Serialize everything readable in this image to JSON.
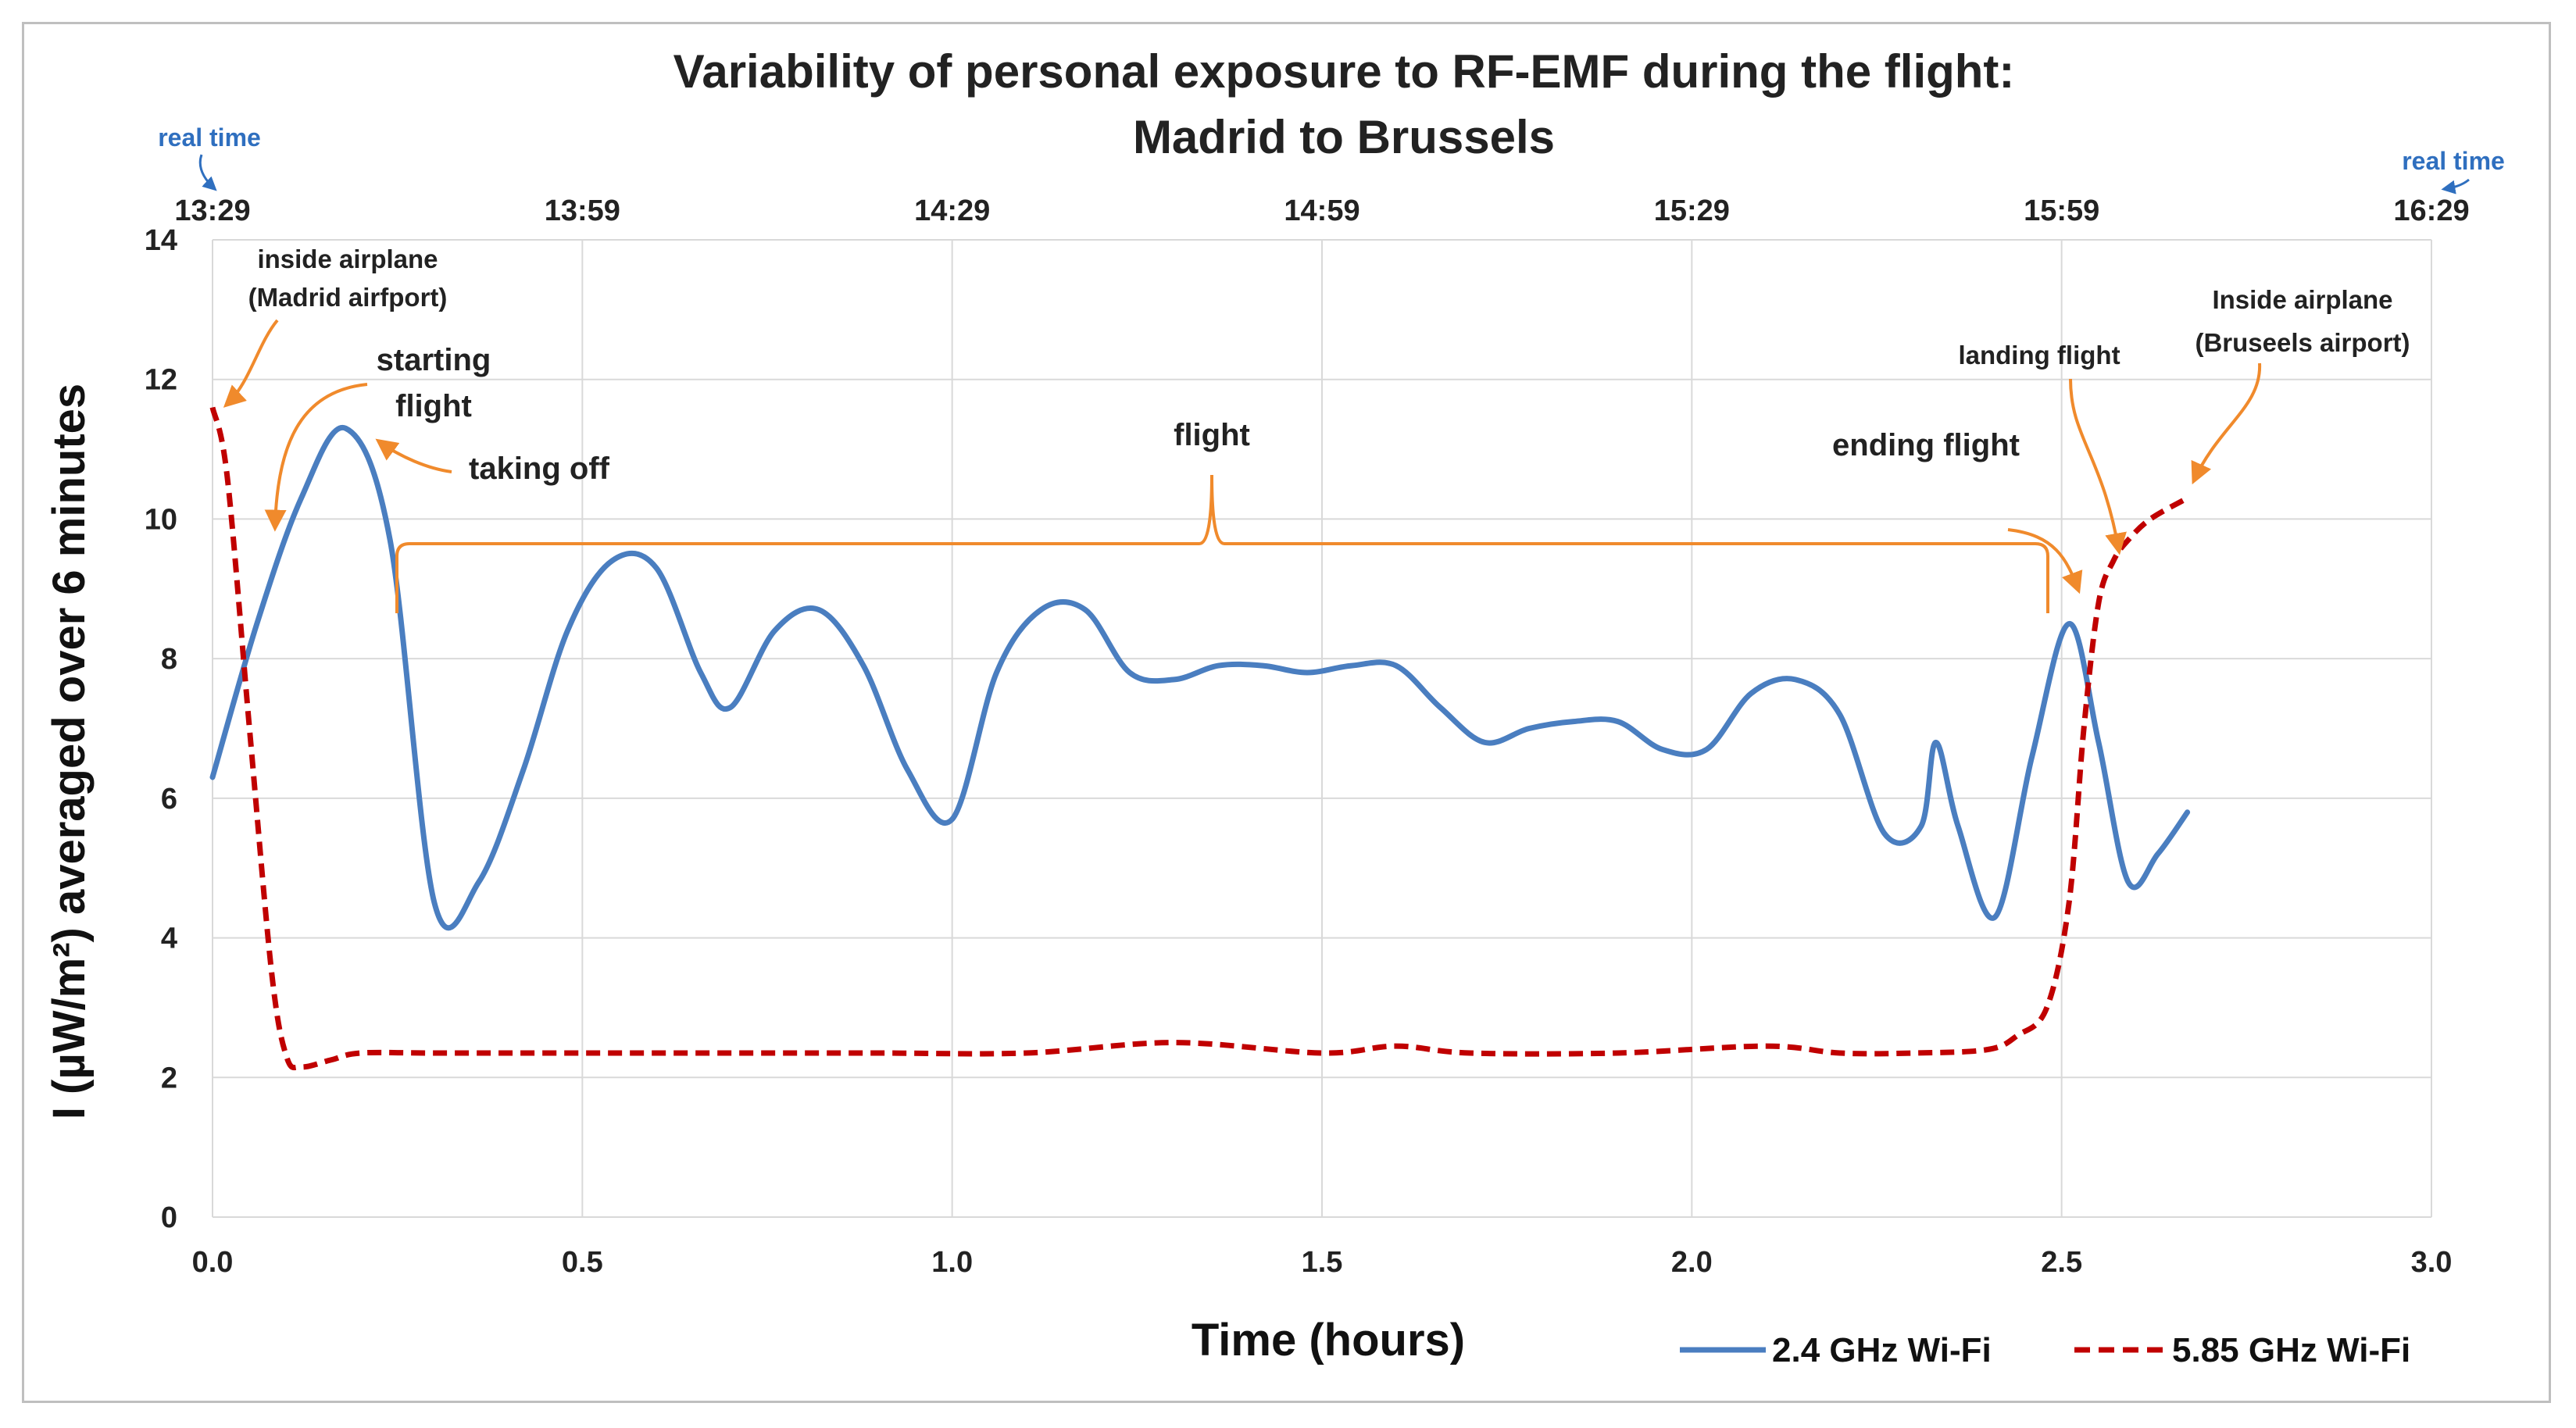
{
  "colors": {
    "series_24": "#4a7ec0",
    "series_585": "#c00000",
    "annotation": "#f08a2c",
    "realtime": "#2f6fbf",
    "grid": "#d9d9d9"
  },
  "chart_data": {
    "type": "line",
    "title": [
      "Variability of personal exposure to RF-EMF during the flight:",
      "Madrid to Brussels"
    ],
    "xlabel": "Time (hours)",
    "ylabel": "I (µW/m²) averaged over 6 minutes",
    "xlim": [
      0,
      3
    ],
    "ylim": [
      0,
      14
    ],
    "x_ticks": [
      0,
      0.5,
      1,
      1.5,
      2,
      2.5,
      3
    ],
    "x_tick_labels": [
      "0.0",
      "0.5",
      "1.0",
      "1.5",
      "2.0",
      "2.5",
      "3.0"
    ],
    "y_ticks": [
      0,
      2,
      4,
      6,
      8,
      10,
      12,
      14
    ],
    "y_tick_labels": [
      "0",
      "2",
      "4",
      "6",
      "8",
      "10",
      "12",
      "14"
    ],
    "top_ticks": [
      0,
      0.5,
      1,
      1.5,
      2,
      2.5,
      3
    ],
    "top_tick_labels": [
      "13:29",
      "13:59",
      "14:29",
      "14:59",
      "15:29",
      "15:59",
      "16:29"
    ],
    "grid": true,
    "legend_position": "bottom-right",
    "series": [
      {
        "name": "2.4 GHz Wi-Fi",
        "style": "solid",
        "x": [
          0,
          0.06,
          0.12,
          0.18,
          0.24,
          0.3,
          0.36,
          0.42,
          0.48,
          0.54,
          0.6,
          0.66,
          0.7,
          0.76,
          0.82,
          0.88,
          0.94,
          1.0,
          1.06,
          1.12,
          1.18,
          1.24,
          1.3,
          1.36,
          1.42,
          1.48,
          1.54,
          1.6,
          1.66,
          1.72,
          1.78,
          1.84,
          1.9,
          1.96,
          2.02,
          2.08,
          2.14,
          2.2,
          2.26,
          2.31,
          2.33,
          2.36,
          2.41,
          2.46,
          2.51,
          2.55,
          2.59,
          2.63,
          2.67
        ],
        "y": [
          6.3,
          8.5,
          10.3,
          11.3,
          9.7,
          4.5,
          4.8,
          6.4,
          8.4,
          9.4,
          9.3,
          7.8,
          7.3,
          8.4,
          8.7,
          7.9,
          6.4,
          5.7,
          7.8,
          8.7,
          8.7,
          7.8,
          7.7,
          7.9,
          7.9,
          7.8,
          7.9,
          7.9,
          7.3,
          6.8,
          7.0,
          7.1,
          7.1,
          6.7,
          6.7,
          7.5,
          7.7,
          7.2,
          5.5,
          5.6,
          6.8,
          5.6,
          4.3,
          6.6,
          8.5,
          6.8,
          4.8,
          5.2,
          5.8
        ]
      },
      {
        "name": "5.85 GHz Wi-Fi",
        "style": "dashed",
        "x": [
          0,
          0.02,
          0.05,
          0.08,
          0.1,
          0.12,
          0.16,
          0.2,
          0.3,
          0.5,
          0.7,
          0.9,
          1.1,
          1.3,
          1.5,
          1.6,
          1.7,
          1.9,
          2.1,
          2.2,
          2.3,
          2.4,
          2.44,
          2.48,
          2.51,
          2.53,
          2.55,
          2.57,
          2.59,
          2.62,
          2.67
        ],
        "y": [
          11.6,
          10.6,
          7.0,
          3.5,
          2.3,
          2.15,
          2.25,
          2.35,
          2.35,
          2.35,
          2.35,
          2.35,
          2.35,
          2.5,
          2.35,
          2.45,
          2.35,
          2.35,
          2.45,
          2.35,
          2.35,
          2.4,
          2.6,
          3.0,
          4.5,
          7.0,
          8.8,
          9.4,
          9.7,
          10.0,
          10.3
        ]
      }
    ],
    "annotations": {
      "inside_airplane_madrid": [
        "inside airplane",
        "(Madrid airfport)"
      ],
      "starting_flight": [
        "starting",
        "flight"
      ],
      "taking_off": "taking off",
      "flight": "flight",
      "ending_flight": "ending flight",
      "landing_flight": "landing flight",
      "inside_airplane_brussels": [
        "Inside airplane",
        "(Bruseels airport)"
      ],
      "real_time_left": "real time",
      "real_time_right": "real time"
    }
  }
}
